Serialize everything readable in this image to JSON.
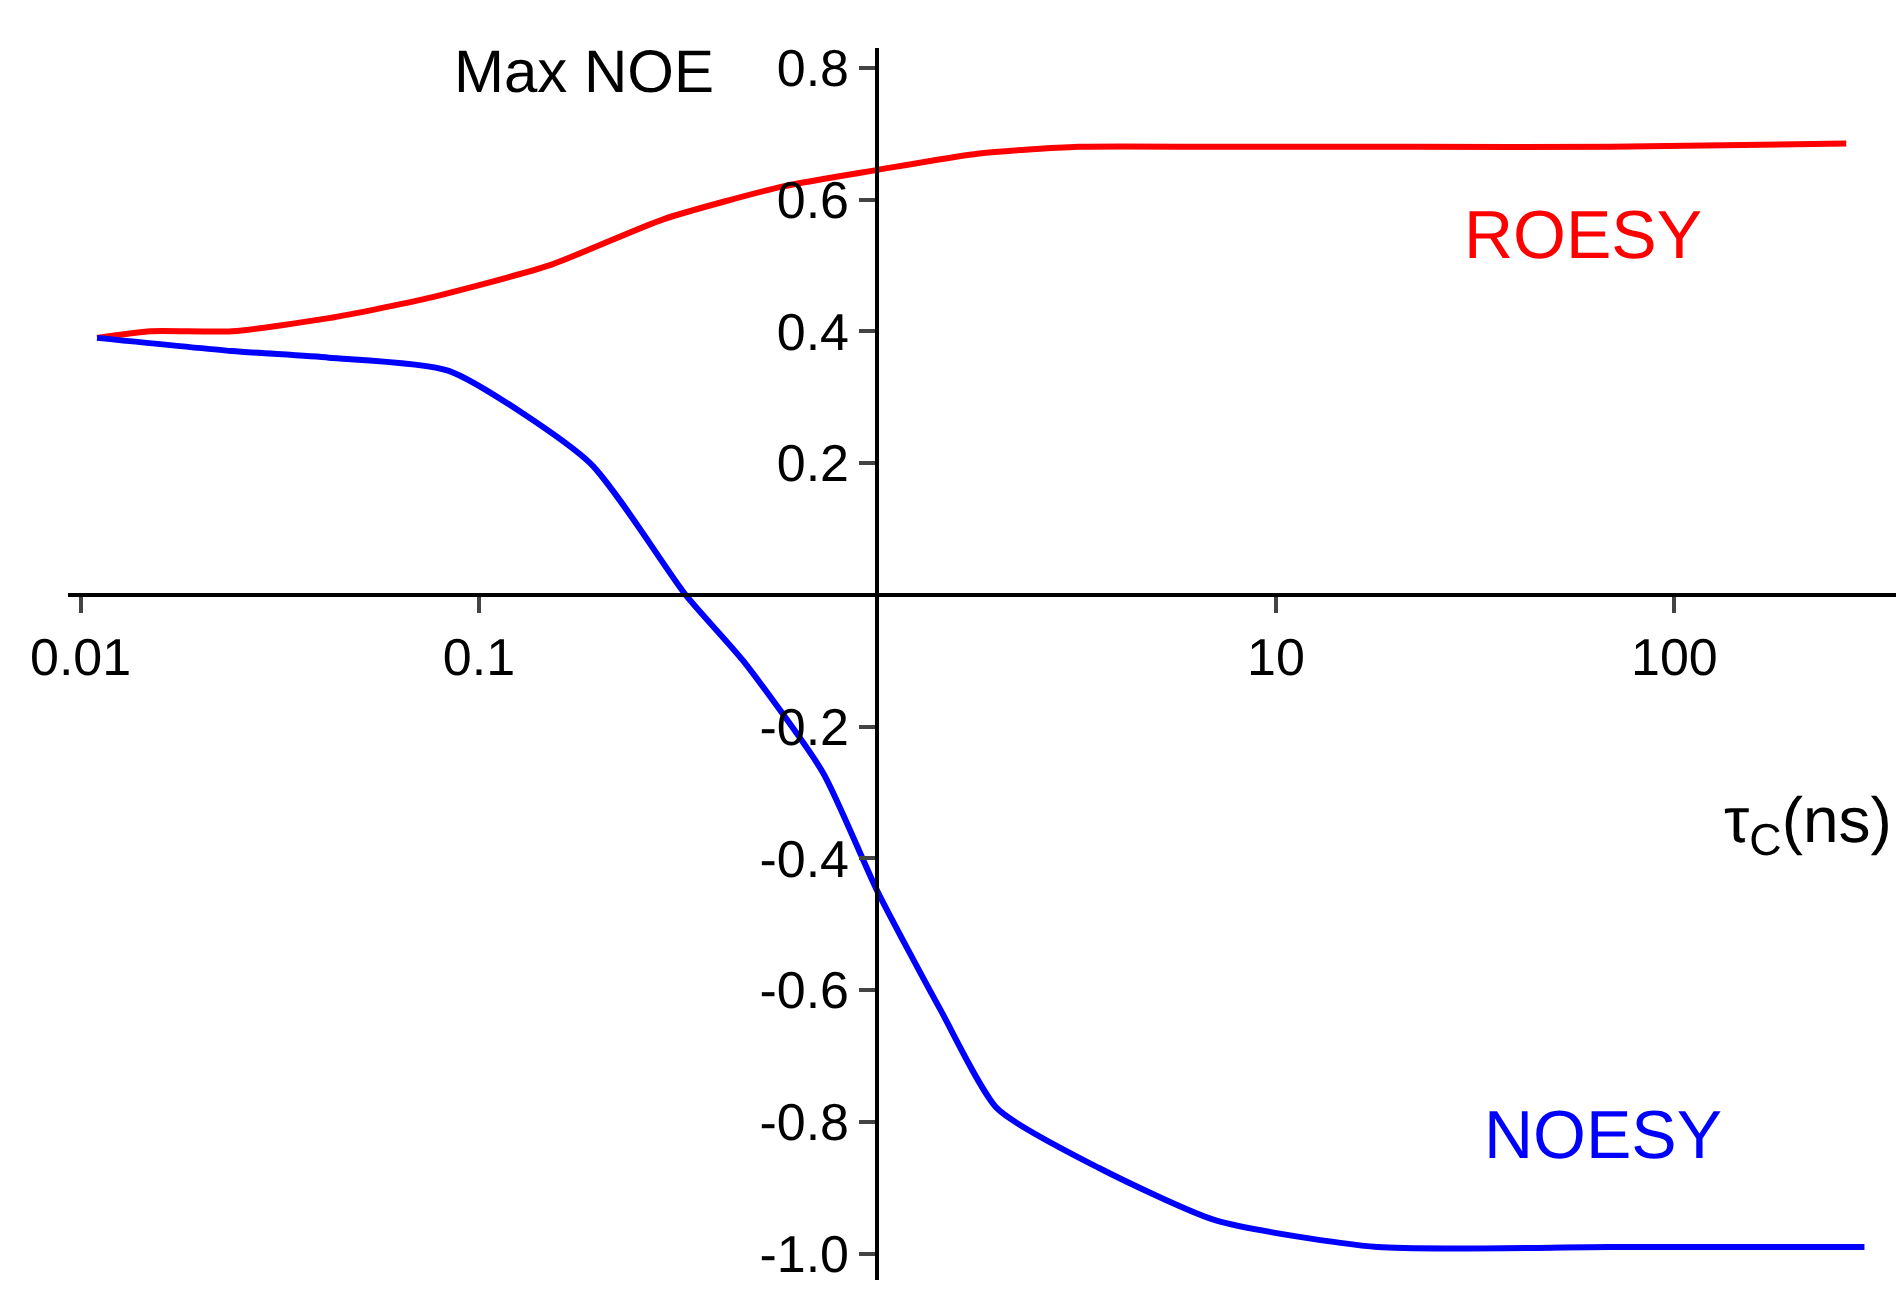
{
  "chart_data": {
    "type": "line",
    "ylabel": "Max NOE",
    "xlabel": "τ$_{C}$(ns)",
    "log": "x",
    "grid": false,
    "legend": false,
    "marker": "none",
    "line_style": "solid",
    "xlim": [
      0.0093,
      360
    ],
    "xticks": [
      0.01,
      0.1,
      10,
      100
    ],
    "ylim": [
      -1.04,
      0.83
    ],
    "yticks": [
      0.8,
      0.6,
      0.4,
      0.2,
      -0.2,
      -0.4,
      -0.6,
      -0.8,
      {
        "value": -1,
        "label": "-1.0"
      }
    ],
    "series": [
      {
        "name": "ROESY",
        "color": "#ff0000",
        "x": [
          0.011,
          0.015,
          0.024,
          0.042,
          0.074,
          0.15,
          0.29,
          0.58,
          1,
          1.8,
          3.2,
          7.1,
          22,
          69,
          270
        ],
        "values": [
          0.39,
          0.4,
          0.4,
          0.42,
          0.45,
          0.5,
          0.57,
          0.62,
          0.645,
          0.67,
          0.68,
          0.68,
          0.68,
          0.68,
          0.685
        ]
      },
      {
        "name": "NOESY",
        "color": "#0000ff",
        "x": [
          0.011,
          0.024,
          0.042,
          0.084,
          0.19,
          0.33,
          0.46,
          0.73,
          1,
          1.44,
          2.0,
          3.6,
          7.1,
          18,
          69,
          300
        ],
        "values": [
          0.39,
          0.37,
          0.36,
          0.34,
          0.2,
          0,
          -0.1,
          -0.27,
          -0.45,
          -0.63,
          -0.78,
          -0.87,
          -0.95,
          -0.99,
          -0.99,
          -0.99
        ]
      }
    ]
  }
}
